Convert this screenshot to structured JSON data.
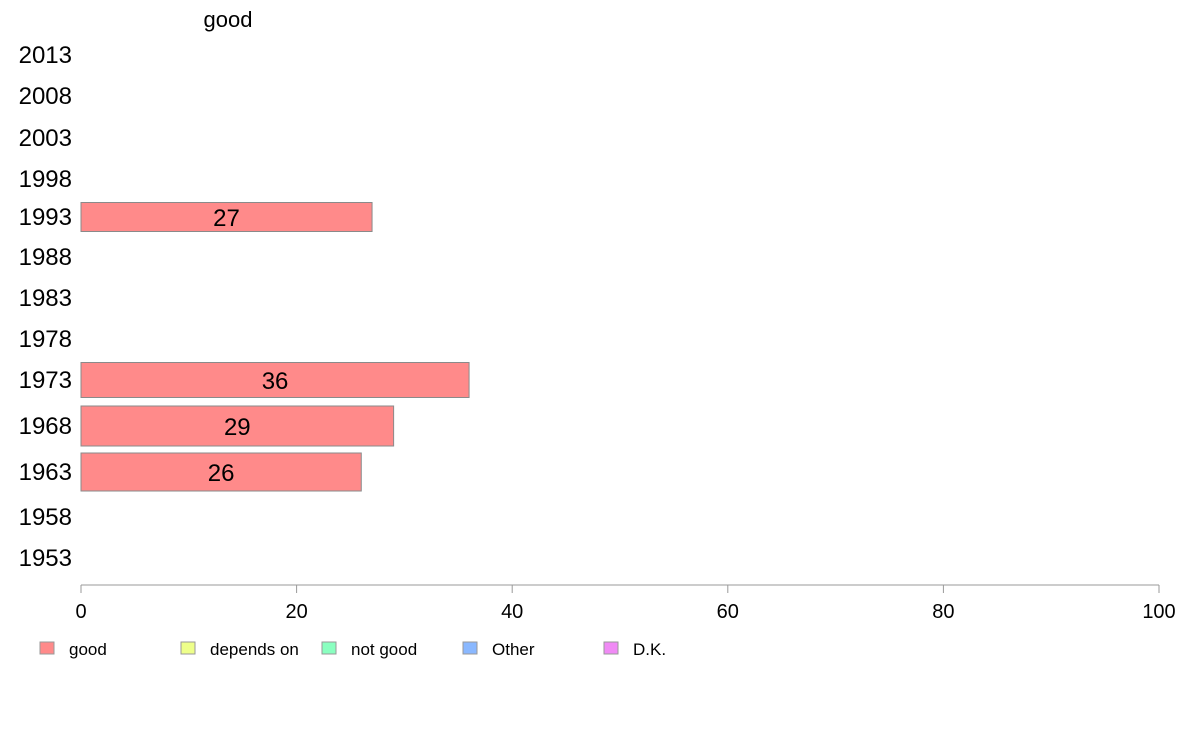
{
  "chart_data": {
    "type": "bar",
    "orientation": "horizontal",
    "column_header": "good",
    "categories": [
      "2013",
      "2008",
      "2003",
      "1998",
      "1993",
      "1988",
      "1983",
      "1978",
      "1973",
      "1968",
      "1963",
      "1958",
      "1953"
    ],
    "series": [
      {
        "name": "good",
        "color": "#ff8a8a",
        "values": [
          null,
          null,
          null,
          null,
          27,
          null,
          null,
          null,
          36,
          29,
          26,
          null,
          null
        ]
      }
    ],
    "xlim": [
      0,
      100
    ],
    "xticks": [
      "0",
      "20",
      "40",
      "60",
      "80",
      "100"
    ],
    "grid": false,
    "legend": {
      "placement": "bottom",
      "items": [
        {
          "label": "good",
          "color": "#ff8a8a"
        },
        {
          "label": "depends on",
          "color": "#eeff8a"
        },
        {
          "label": "not good",
          "color": "#8affc0"
        },
        {
          "label": "Other",
          "color": "#8ab8ff"
        },
        {
          "label": "D.K.",
          "color": "#f08af5"
        }
      ]
    }
  }
}
